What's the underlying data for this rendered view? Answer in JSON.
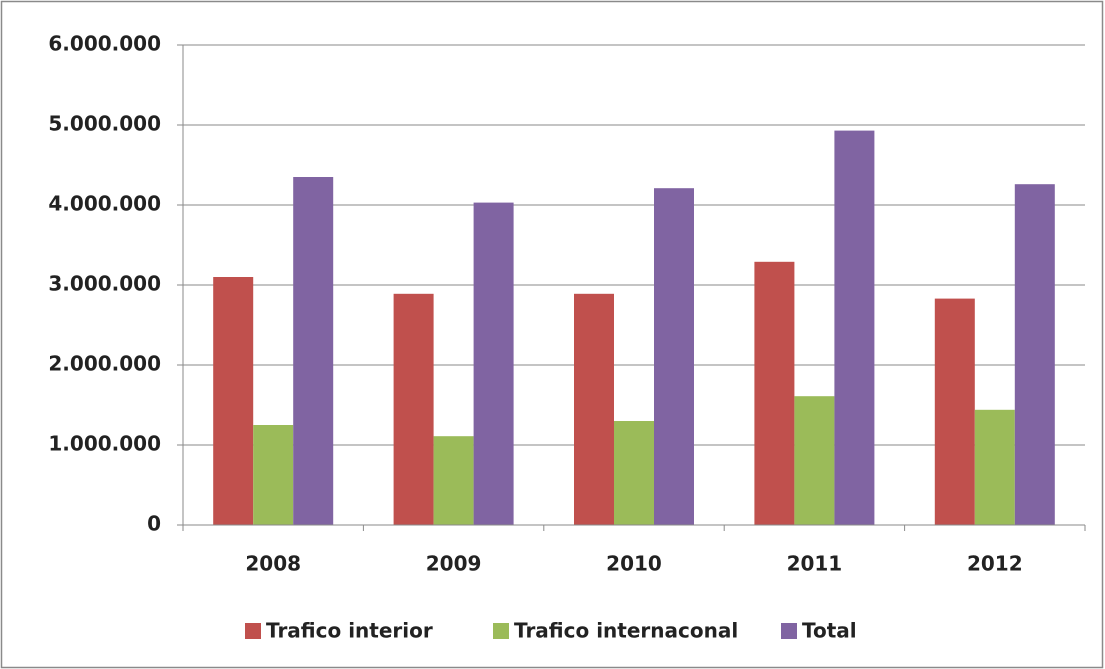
{
  "chart_data": {
    "type": "bar",
    "categories": [
      "2008",
      "2009",
      "2010",
      "2011",
      "2012"
    ],
    "series": [
      {
        "name": "Trafico interior",
        "color": "#c0504d",
        "values": [
          3100000,
          2890000,
          2890000,
          3290000,
          2830000
        ]
      },
      {
        "name": "Trafico internaconal",
        "color": "#9bbb59",
        "values": [
          1250000,
          1110000,
          1300000,
          1610000,
          1440000
        ]
      },
      {
        "name": "Total",
        "color": "#8064a2",
        "values": [
          4350000,
          4030000,
          4210000,
          4930000,
          4260000
        ]
      }
    ],
    "ylim": [
      0,
      6000000
    ],
    "yticks": [
      0,
      {
        "value": 1000000,
        "label": "1.000.000"
      },
      {
        "value": 2000000,
        "label": "2.000.000"
      },
      {
        "value": 3000000,
        "label": "3.000.000"
      },
      {
        "value": 4000000,
        "label": "4.000.000"
      },
      {
        "value": 5000000,
        "label": "5.000.000"
      },
      {
        "value": 6000000,
        "label": "6.000.000"
      }
    ],
    "grid": true,
    "legend": "bottom"
  }
}
